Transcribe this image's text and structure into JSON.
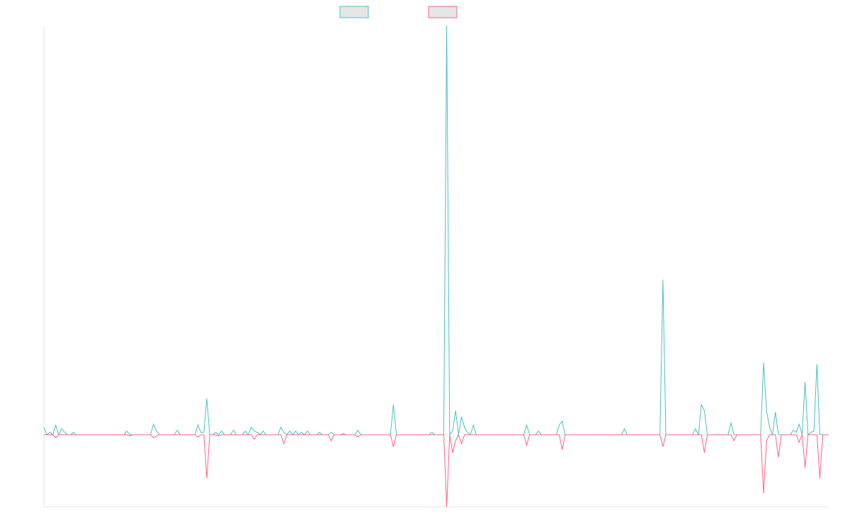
{
  "chart_data": {
    "type": "line",
    "title": "",
    "xlabel": "",
    "ylabel": "",
    "grid": false,
    "legend_position": "top-center",
    "x_range": [
      0,
      265
    ],
    "ylim": [
      -24,
      136
    ],
    "series": [
      {
        "color": "#4bc0c0",
        "legend_fill": "#e6e6e6",
        "points": [
          [
            0,
            2.5
          ],
          [
            1,
            0
          ],
          [
            2,
            0.8
          ],
          [
            3,
            0
          ],
          [
            4,
            3.2
          ],
          [
            5,
            0
          ],
          [
            6,
            2
          ],
          [
            7,
            0.8
          ],
          [
            8,
            0
          ],
          [
            9,
            0
          ],
          [
            10,
            0.8
          ],
          [
            11,
            0
          ],
          [
            28,
            1.2
          ],
          [
            29,
            0
          ],
          [
            36,
            0
          ],
          [
            37,
            3.5
          ],
          [
            38,
            1.2
          ],
          [
            39,
            0
          ],
          [
            44,
            0
          ],
          [
            45,
            1.5
          ],
          [
            46,
            0
          ],
          [
            51,
            0
          ],
          [
            52,
            3.2
          ],
          [
            53,
            0.8
          ],
          [
            54,
            0.8
          ],
          [
            55,
            12
          ],
          [
            56,
            0
          ],
          [
            58,
            0.8
          ],
          [
            59,
            0
          ],
          [
            60,
            1.2
          ],
          [
            61,
            0
          ],
          [
            64,
            1.5
          ],
          [
            65,
            0
          ],
          [
            68,
            1.2
          ],
          [
            69,
            0
          ],
          [
            70,
            2.5
          ],
          [
            71,
            1.2
          ],
          [
            72,
            0.8
          ],
          [
            73,
            0
          ],
          [
            74,
            1.2
          ],
          [
            75,
            0
          ],
          [
            80,
            2.5
          ],
          [
            81,
            0.8
          ],
          [
            82,
            0
          ],
          [
            83,
            1.2
          ],
          [
            84,
            0
          ],
          [
            85,
            1.2
          ],
          [
            86,
            0
          ],
          [
            87,
            0.8
          ],
          [
            88,
            0
          ],
          [
            89,
            1.2
          ],
          [
            90,
            0
          ],
          [
            93,
            0.8
          ],
          [
            94,
            0
          ],
          [
            96,
            0
          ],
          [
            97,
            0.8
          ],
          [
            98,
            0
          ],
          [
            100,
            0
          ],
          [
            101,
            0.4
          ],
          [
            102,
            0
          ],
          [
            105,
            0
          ],
          [
            106,
            1.5
          ],
          [
            107,
            0
          ],
          [
            117,
            0
          ],
          [
            118,
            10
          ],
          [
            119,
            0
          ],
          [
            130,
            0
          ],
          [
            131,
            0.8
          ],
          [
            132,
            0
          ],
          [
            136,
            136
          ],
          [
            137,
            0
          ],
          [
            138,
            1.2
          ],
          [
            139,
            8
          ],
          [
            140,
            0
          ],
          [
            141,
            6
          ],
          [
            142,
            2.5
          ],
          [
            143,
            0.8
          ],
          [
            144,
            0
          ],
          [
            145,
            3.2
          ],
          [
            146,
            0
          ],
          [
            162,
            0
          ],
          [
            163,
            3.2
          ],
          [
            164,
            0
          ],
          [
            166,
            0
          ],
          [
            167,
            1.2
          ],
          [
            168,
            0
          ],
          [
            173,
            0
          ],
          [
            174,
            3.2
          ],
          [
            175,
            4.5
          ],
          [
            176,
            0
          ],
          [
            195,
            0
          ],
          [
            196,
            2
          ],
          [
            197,
            0
          ],
          [
            208,
            0
          ],
          [
            209,
            51.5
          ],
          [
            210,
            0
          ],
          [
            219,
            0
          ],
          [
            220,
            2
          ],
          [
            221,
            0
          ],
          [
            222,
            10
          ],
          [
            223,
            8
          ],
          [
            224,
            0
          ],
          [
            231,
            0
          ],
          [
            232,
            4
          ],
          [
            233,
            0
          ],
          [
            242,
            0
          ],
          [
            243,
            24
          ],
          [
            244,
            8
          ],
          [
            245,
            2.5
          ],
          [
            246,
            0
          ],
          [
            247,
            7.5
          ],
          [
            248,
            0
          ],
          [
            252,
            0
          ],
          [
            253,
            1.5
          ],
          [
            254,
            0.8
          ],
          [
            255,
            3.5
          ],
          [
            256,
            0
          ],
          [
            257,
            17.5
          ],
          [
            258,
            0
          ],
          [
            259,
            0.8
          ],
          [
            260,
            1.2
          ],
          [
            261,
            23.5
          ],
          [
            262,
            0
          ]
        ]
      },
      {
        "color": "#ff6384",
        "legend_fill": "#e6e6e6",
        "points": [
          [
            0,
            0
          ],
          [
            4,
            -1
          ],
          [
            5,
            0
          ],
          [
            28,
            0
          ],
          [
            29,
            -0.4
          ],
          [
            30,
            0
          ],
          [
            36,
            0
          ],
          [
            37,
            -1
          ],
          [
            38,
            -0.4
          ],
          [
            39,
            0
          ],
          [
            51,
            0
          ],
          [
            52,
            -0.8
          ],
          [
            53,
            0
          ],
          [
            54,
            0
          ],
          [
            55,
            -14.5
          ],
          [
            56,
            0
          ],
          [
            58,
            0
          ],
          [
            59,
            -0.4
          ],
          [
            60,
            0
          ],
          [
            70,
            0
          ],
          [
            71,
            -1.5
          ],
          [
            72,
            0
          ],
          [
            80,
            0
          ],
          [
            81,
            -3
          ],
          [
            82,
            0
          ],
          [
            96,
            0
          ],
          [
            97,
            -2
          ],
          [
            98,
            0
          ],
          [
            105,
            0
          ],
          [
            106,
            -0.8
          ],
          [
            107,
            0
          ],
          [
            117,
            0
          ],
          [
            118,
            -4
          ],
          [
            119,
            0
          ],
          [
            135,
            0
          ],
          [
            136,
            -24
          ],
          [
            137,
            0
          ],
          [
            138,
            -6
          ],
          [
            139,
            -2
          ],
          [
            140,
            0
          ],
          [
            141,
            -3
          ],
          [
            142,
            0
          ],
          [
            162,
            0
          ],
          [
            163,
            -3.5
          ],
          [
            164,
            0
          ],
          [
            174,
            0
          ],
          [
            175,
            -5
          ],
          [
            176,
            0
          ],
          [
            208,
            0
          ],
          [
            209,
            -4
          ],
          [
            210,
            0
          ],
          [
            222,
            0
          ],
          [
            223,
            -6
          ],
          [
            224,
            0
          ],
          [
            232,
            0
          ],
          [
            233,
            -2
          ],
          [
            234,
            0
          ],
          [
            242,
            0
          ],
          [
            243,
            -19.5
          ],
          [
            244,
            -2
          ],
          [
            245,
            0
          ],
          [
            247,
            0
          ],
          [
            248,
            -7.5
          ],
          [
            249,
            0
          ],
          [
            254,
            0
          ],
          [
            255,
            -2.5
          ],
          [
            256,
            0
          ],
          [
            257,
            -11
          ],
          [
            258,
            0
          ],
          [
            261,
            0
          ],
          [
            262,
            -14.5
          ],
          [
            263,
            0
          ]
        ]
      }
    ]
  }
}
